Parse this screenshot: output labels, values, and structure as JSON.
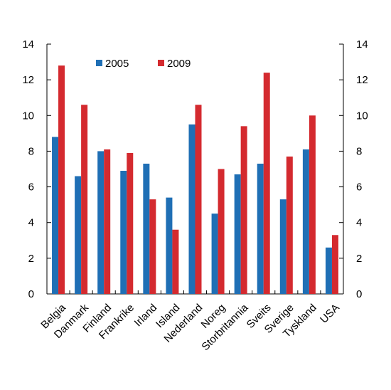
{
  "chart_data": {
    "type": "bar",
    "categories": [
      "Belgia",
      "Danmark",
      "Finland",
      "Frankrike",
      "Irland",
      "Island",
      "Nederland",
      "Noreg",
      "Storbritannia",
      "Sveits",
      "Sverige",
      "Tyskland",
      "USA"
    ],
    "series": [
      {
        "name": "2005",
        "color": "#1f6fb5",
        "values": [
          8.8,
          6.6,
          8.0,
          6.9,
          7.3,
          5.4,
          9.5,
          4.5,
          6.7,
          7.3,
          5.3,
          8.1,
          2.6
        ]
      },
      {
        "name": "2009",
        "color": "#d42a2f",
        "values": [
          12.8,
          10.6,
          8.1,
          7.9,
          5.3,
          3.6,
          10.6,
          7.0,
          9.4,
          12.4,
          7.7,
          10.0,
          3.3
        ]
      }
    ],
    "ylim": [
      0,
      14
    ],
    "yticks": [
      0,
      2,
      4,
      6,
      8,
      10,
      12,
      14
    ],
    "ytick_labels": [
      "0",
      "2",
      "4",
      "6",
      "8",
      "10",
      "12",
      "14"
    ],
    "secondary_axis": true,
    "grid": false,
    "legend_position": "top-left"
  }
}
